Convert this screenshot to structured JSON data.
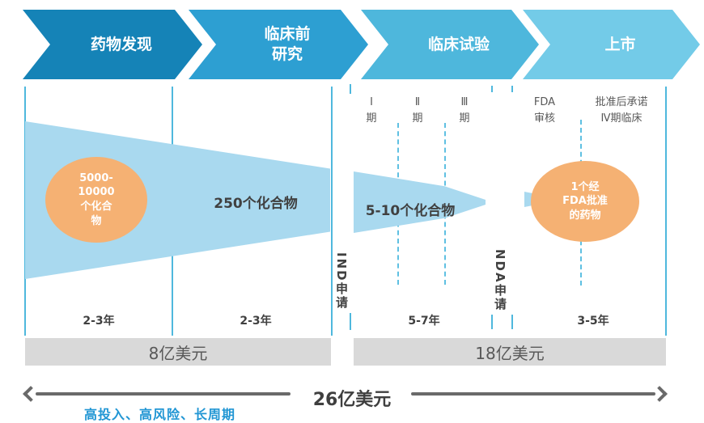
{
  "stages": [
    {
      "label": "药物发现",
      "color": "#1583b7"
    },
    {
      "label": "临床前\n研究",
      "color": "#2d9fd2"
    },
    {
      "label": "临床试验",
      "color": "#4eb7dc"
    },
    {
      "label": "上市",
      "color": "#73cbe8"
    }
  ],
  "phases": [
    {
      "label": "Ⅰ\n期"
    },
    {
      "label": "Ⅱ\n期"
    },
    {
      "label": "Ⅲ\n期"
    },
    {
      "label": "FDA\n审核"
    },
    {
      "label": "批准后承诺\nⅣ期临床"
    }
  ],
  "funnel_counts": {
    "discovery": "5000-\n10000\n个化合\n物",
    "preclinical": "250个化合物",
    "clinical": "5-10个化合物",
    "approved": "1个经\nFDA批准\n的药物"
  },
  "milestones": {
    "ind": "IND申请",
    "nda": "NDA申请"
  },
  "durations": [
    "2-3年",
    "2-3年",
    "5-7年",
    "3-5年"
  ],
  "costs": {
    "early": "8亿美元",
    "late": "18亿美元",
    "total": "26亿美元"
  },
  "caption": "高投入、高风险、长周期",
  "colors": {
    "stage_discovery": "#1583b7",
    "stage_preclinical": "#2d9fd2",
    "stage_clinical": "#4eb7dc",
    "stage_market": "#73cbe8",
    "funnel_fill": "#a9d9ef",
    "bubble_fill": "#f5b173",
    "divider_blue": "#4fb8dd",
    "dashed_blue": "#5fc0e2",
    "cost_bar_bg": "#d9d9d9",
    "cost_bar_text": "#595959",
    "dark_text": "#404040",
    "span_arrow_gray": "#6a6a6a",
    "caption_blue": "#2196d4"
  }
}
